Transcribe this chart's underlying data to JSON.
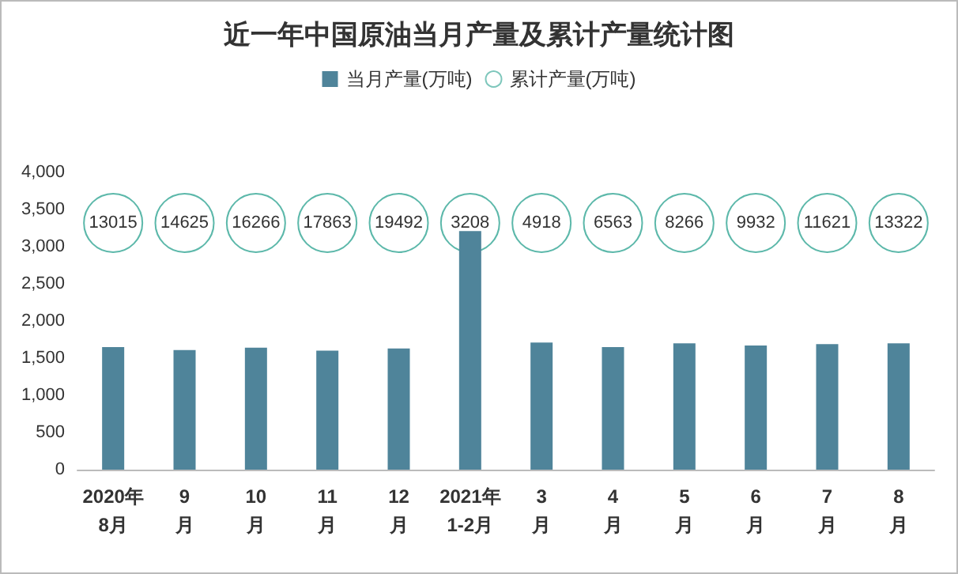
{
  "chart_data": {
    "type": "bar",
    "title": "近一年中国原油当月产量及累计产量统计图",
    "categories": [
      "2020年\n8月",
      "9\n月",
      "10\n月",
      "11\n月",
      "12\n月",
      "2021年\n1-2月",
      "3\n月",
      "4\n月",
      "5\n月",
      "6\n月",
      "7\n月",
      "8\n月"
    ],
    "series": [
      {
        "name": "当月产量(万吨)",
        "color": "#4f849a",
        "values": [
          1650,
          1610,
          1640,
          1600,
          1630,
          3210,
          1710,
          1650,
          1700,
          1670,
          1690,
          1700
        ]
      },
      {
        "name": "累计产量(万吨)",
        "type": "scatter",
        "color": "#5cb8aa",
        "values": [
          null,
          null,
          null,
          null,
          null,
          null,
          null,
          null,
          null,
          null,
          null,
          null
        ]
      }
    ],
    "annotations": [
      {
        "text": "13015",
        "x": "2020年\n8月"
      },
      {
        "text": "14625",
        "x": "9\n月"
      },
      {
        "text": "16266",
        "x": "10\n月"
      },
      {
        "text": "17863",
        "x": "11\n月"
      },
      {
        "text": "19492",
        "x": "12\n月"
      },
      {
        "text": "3208",
        "x": "2021年\n1-2月"
      },
      {
        "text": "4918",
        "x": "3\n月"
      },
      {
        "text": "6563",
        "x": "4\n月"
      },
      {
        "text": "8266",
        "x": "5\n月"
      },
      {
        "text": "9932",
        "x": "6\n月"
      },
      {
        "text": "11621",
        "x": "7\n月"
      },
      {
        "text": "13322",
        "x": "8\n月"
      }
    ],
    "ylim": [
      0,
      4000
    ],
    "yticks": [
      0,
      500,
      {
        "value": 1000,
        "label": "1,000"
      },
      {
        "value": 1500,
        "label": "1,500"
      },
      {
        "value": 2000,
        "label": "2,000"
      },
      {
        "value": 2500,
        "label": "2,500"
      },
      {
        "value": 3000,
        "label": "3,000"
      },
      {
        "value": 3500,
        "label": "3,500"
      },
      {
        "value": 4000,
        "label": "4,000"
      }
    ],
    "grid": false,
    "legend": "top"
  }
}
